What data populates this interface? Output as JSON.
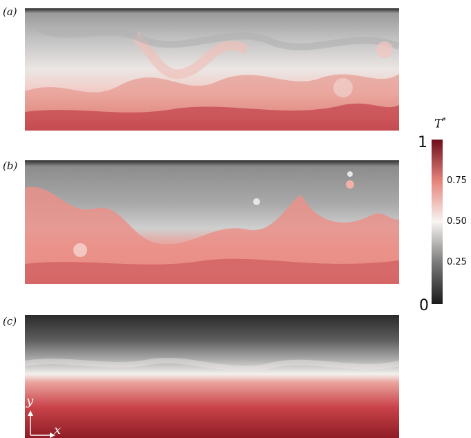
{
  "panels": [
    {
      "label": "(a)"
    },
    {
      "label": "(b)"
    },
    {
      "label": "(c)"
    }
  ],
  "colorbar": {
    "title": "T",
    "title_sup": "*",
    "ticks": [
      {
        "label": "1",
        "value": 1.0
      },
      {
        "label": "0.75",
        "value": 0.75
      },
      {
        "label": "0.50",
        "value": 0.5
      },
      {
        "label": "0.25",
        "value": 0.25
      },
      {
        "label": "0",
        "value": 0.0
      }
    ],
    "colors": {
      "low": "#1a1a1a",
      "mid": "#f7f4f2",
      "high": "#6e0d1a"
    }
  },
  "axes": {
    "x": "x",
    "y": "y"
  }
}
